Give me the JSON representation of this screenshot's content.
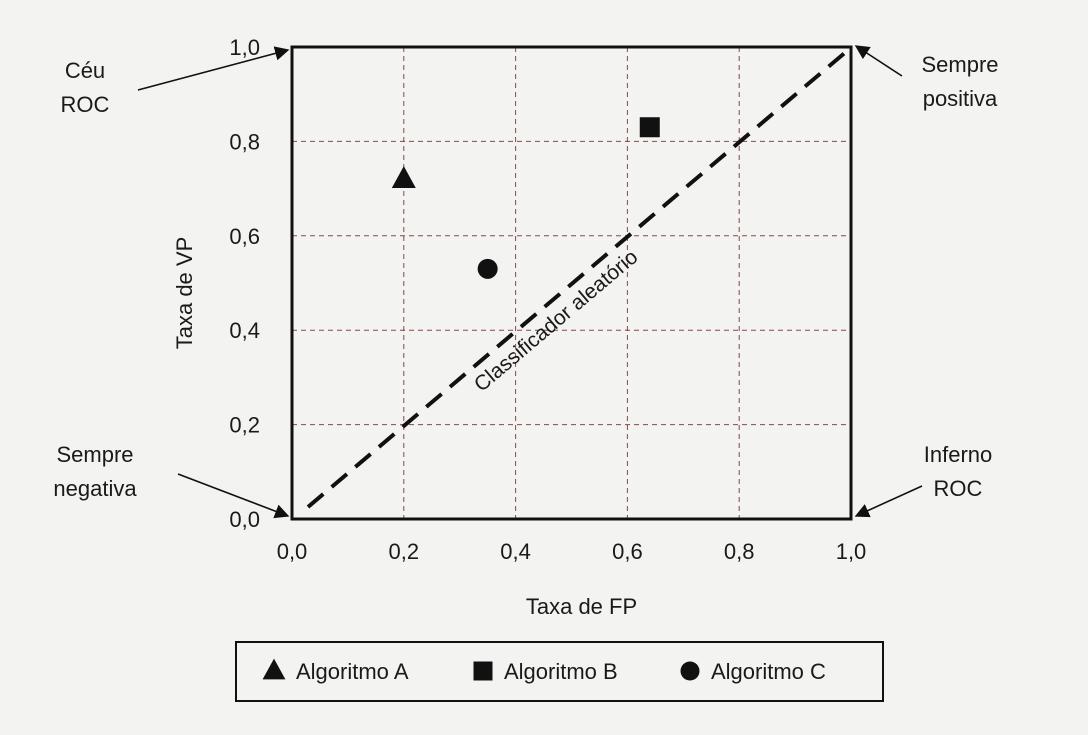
{
  "chart_data": {
    "type": "scatter",
    "title": "",
    "xlabel": "Taxa de FP",
    "ylabel": "Taxa de VP",
    "xlim": [
      0,
      1
    ],
    "ylim": [
      0,
      1
    ],
    "x_ticks": [
      0,
      0.2,
      0.4,
      0.6,
      0.8,
      1.0
    ],
    "x_tick_labels": [
      "0,0",
      "0,2",
      "0,4",
      "0,6",
      "0,8",
      "1,0"
    ],
    "y_ticks": [
      0,
      0.2,
      0.4,
      0.6,
      0.8,
      1.0
    ],
    "y_tick_labels": [
      "0,0",
      "0,2",
      "0,4",
      "0,6",
      "0,8",
      "1,0"
    ],
    "grid": true,
    "legend_position": "bottom-center",
    "series": [
      {
        "name": "Algoritmo A",
        "marker": "triangle",
        "points": [
          {
            "x": 0.2,
            "y": 0.72
          }
        ]
      },
      {
        "name": "Algoritmo B",
        "marker": "square",
        "points": [
          {
            "x": 0.64,
            "y": 0.83
          }
        ]
      },
      {
        "name": "Algoritmo C",
        "marker": "circle",
        "points": [
          {
            "x": 0.35,
            "y": 0.53
          }
        ]
      }
    ],
    "reference_line": {
      "label": "Classificador aleatório",
      "from": [
        0,
        0
      ],
      "to": [
        1,
        1
      ]
    },
    "annotations": [
      {
        "id": "ceu",
        "lines": [
          "Céu",
          "ROC"
        ],
        "x": 0,
        "y": 1
      },
      {
        "id": "sempre-positiva",
        "lines": [
          "Sempre",
          "positiva"
        ],
        "x": 1,
        "y": 1
      },
      {
        "id": "sempre-negativa",
        "lines": [
          "Sempre",
          "negativa"
        ],
        "x": 0,
        "y": 0
      },
      {
        "id": "inferno",
        "lines": [
          "Inferno",
          "ROC"
        ],
        "x": 1,
        "y": 0
      }
    ],
    "colors": {
      "marker": "#111111",
      "grid": "#7a2a2a",
      "frame": "#111111"
    }
  }
}
